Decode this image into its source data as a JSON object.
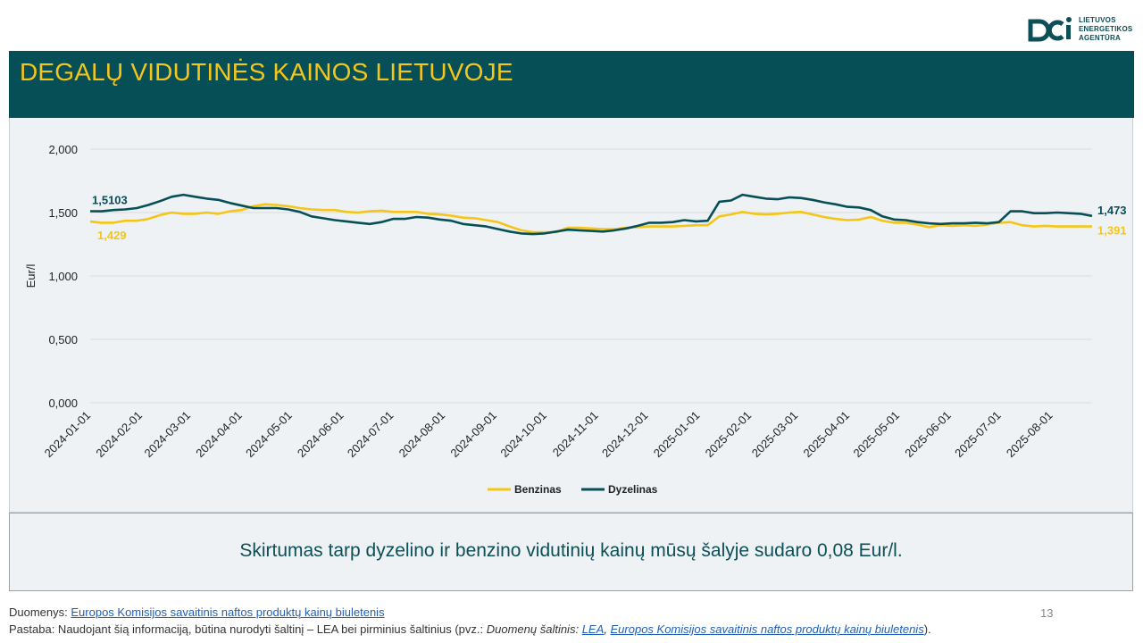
{
  "header": {
    "title": "DEGALŲ VIDUTINĖS KAINOS LIETUVOJE"
  },
  "logo": {
    "line1": "LIETUVOS",
    "line2": "ENERGETIKOS",
    "line3": "AGENTŪRA",
    "icon": "lea-logo-icon"
  },
  "chart_data": {
    "type": "line",
    "title": "",
    "xlabel": "",
    "ylabel": "Eur/l",
    "ylim": [
      0,
      2
    ],
    "yticks": [
      "0,000",
      "0,500",
      "1,000",
      "1,500",
      "2,000"
    ],
    "grid": true,
    "legend_position": "bottom",
    "x_tick_labels": [
      "2024-01-01",
      "2024-02-01",
      "2024-03-01",
      "2024-04-01",
      "2024-05-01",
      "2024-06-01",
      "2024-07-01",
      "2024-08-01",
      "2024-09-01",
      "2024-10-01",
      "2024-11-01",
      "2024-12-01",
      "2025-01-01",
      "2025-02-01",
      "2025-03-01",
      "2025-04-01",
      "2025-05-01",
      "2025-06-01",
      "2025-07-01",
      "2025-08-01"
    ],
    "series": [
      {
        "name": "Benzinas",
        "color": "#f5c518",
        "points": [
          [
            "2024-01-01",
            1.429
          ],
          [
            "2024-01-08",
            1.42
          ],
          [
            "2024-01-15",
            1.42
          ],
          [
            "2024-01-22",
            1.435
          ],
          [
            "2024-01-29",
            1.435
          ],
          [
            "2024-02-05",
            1.45
          ],
          [
            "2024-02-12",
            1.48
          ],
          [
            "2024-02-19",
            1.5
          ],
          [
            "2024-02-26",
            1.49
          ],
          [
            "2024-03-04",
            1.49
          ],
          [
            "2024-03-11",
            1.5
          ],
          [
            "2024-03-18",
            1.49
          ],
          [
            "2024-03-25",
            1.51
          ],
          [
            "2024-04-01",
            1.52
          ],
          [
            "2024-04-08",
            1.55
          ],
          [
            "2024-04-15",
            1.565
          ],
          [
            "2024-04-22",
            1.56
          ],
          [
            "2024-04-29",
            1.55
          ],
          [
            "2024-05-06",
            1.535
          ],
          [
            "2024-05-13",
            1.525
          ],
          [
            "2024-05-20",
            1.52
          ],
          [
            "2024-05-27",
            1.52
          ],
          [
            "2024-06-03",
            1.505
          ],
          [
            "2024-06-10",
            1.5
          ],
          [
            "2024-06-17",
            1.51
          ],
          [
            "2024-06-24",
            1.515
          ],
          [
            "2024-07-01",
            1.505
          ],
          [
            "2024-07-08",
            1.505
          ],
          [
            "2024-07-15",
            1.505
          ],
          [
            "2024-07-22",
            1.49
          ],
          [
            "2024-07-29",
            1.485
          ],
          [
            "2024-08-05",
            1.475
          ],
          [
            "2024-08-12",
            1.46
          ],
          [
            "2024-08-19",
            1.455
          ],
          [
            "2024-08-26",
            1.44
          ],
          [
            "2024-09-02",
            1.425
          ],
          [
            "2024-09-09",
            1.39
          ],
          [
            "2024-09-16",
            1.36
          ],
          [
            "2024-09-23",
            1.345
          ],
          [
            "2024-09-30",
            1.345
          ],
          [
            "2024-10-07",
            1.345
          ],
          [
            "2024-10-14",
            1.38
          ],
          [
            "2024-10-21",
            1.38
          ],
          [
            "2024-10-28",
            1.375
          ],
          [
            "2024-11-04",
            1.37
          ],
          [
            "2024-11-11",
            1.37
          ],
          [
            "2024-11-18",
            1.38
          ],
          [
            "2024-11-25",
            1.385
          ],
          [
            "2024-12-02",
            1.39
          ],
          [
            "2024-12-09",
            1.39
          ],
          [
            "2024-12-16",
            1.39
          ],
          [
            "2024-12-23",
            1.395
          ],
          [
            "2024-12-30",
            1.4
          ],
          [
            "2025-01-06",
            1.4
          ],
          [
            "2025-01-13",
            1.47
          ],
          [
            "2025-01-20",
            1.485
          ],
          [
            "2025-01-27",
            1.505
          ],
          [
            "2025-02-03",
            1.49
          ],
          [
            "2025-02-10",
            1.485
          ],
          [
            "2025-02-17",
            1.49
          ],
          [
            "2025-02-24",
            1.5
          ],
          [
            "2025-03-03",
            1.505
          ],
          [
            "2025-03-10",
            1.485
          ],
          [
            "2025-03-17",
            1.465
          ],
          [
            "2025-03-24",
            1.45
          ],
          [
            "2025-03-31",
            1.44
          ],
          [
            "2025-04-07",
            1.445
          ],
          [
            "2025-04-14",
            1.465
          ],
          [
            "2025-04-21",
            1.435
          ],
          [
            "2025-04-28",
            1.42
          ],
          [
            "2025-05-05",
            1.42
          ],
          [
            "2025-05-12",
            1.405
          ],
          [
            "2025-05-19",
            1.385
          ],
          [
            "2025-05-26",
            1.4
          ],
          [
            "2025-06-02",
            1.395
          ],
          [
            "2025-06-09",
            1.4
          ],
          [
            "2025-06-16",
            1.395
          ],
          [
            "2025-06-23",
            1.405
          ],
          [
            "2025-06-30",
            1.42
          ],
          [
            "2025-07-07",
            1.425
          ],
          [
            "2025-07-14",
            1.4
          ],
          [
            "2025-07-21",
            1.39
          ],
          [
            "2025-07-28",
            1.395
          ],
          [
            "2025-08-04",
            1.39
          ],
          [
            "2025-08-11",
            1.39
          ],
          [
            "2025-08-18",
            1.39
          ],
          [
            "2025-08-25",
            1.391
          ]
        ],
        "start_label": "1,429",
        "end_label": "1,391"
      },
      {
        "name": "Dyzelinas",
        "color": "#074f57",
        "points": [
          [
            "2024-01-01",
            1.5103
          ],
          [
            "2024-01-08",
            1.51
          ],
          [
            "2024-01-15",
            1.52
          ],
          [
            "2024-01-22",
            1.525
          ],
          [
            "2024-01-29",
            1.535
          ],
          [
            "2024-02-05",
            1.56
          ],
          [
            "2024-02-12",
            1.59
          ],
          [
            "2024-02-19",
            1.625
          ],
          [
            "2024-02-26",
            1.64
          ],
          [
            "2024-03-04",
            1.625
          ],
          [
            "2024-03-11",
            1.61
          ],
          [
            "2024-03-18",
            1.6
          ],
          [
            "2024-03-25",
            1.575
          ],
          [
            "2024-04-01",
            1.555
          ],
          [
            "2024-04-08",
            1.535
          ],
          [
            "2024-04-15",
            1.535
          ],
          [
            "2024-04-22",
            1.535
          ],
          [
            "2024-04-29",
            1.525
          ],
          [
            "2024-05-06",
            1.505
          ],
          [
            "2024-05-13",
            1.47
          ],
          [
            "2024-05-20",
            1.455
          ],
          [
            "2024-05-27",
            1.44
          ],
          [
            "2024-06-03",
            1.43
          ],
          [
            "2024-06-10",
            1.42
          ],
          [
            "2024-06-17",
            1.41
          ],
          [
            "2024-06-24",
            1.425
          ],
          [
            "2024-07-01",
            1.45
          ],
          [
            "2024-07-08",
            1.45
          ],
          [
            "2024-07-15",
            1.465
          ],
          [
            "2024-07-22",
            1.46
          ],
          [
            "2024-07-29",
            1.445
          ],
          [
            "2024-08-05",
            1.435
          ],
          [
            "2024-08-12",
            1.41
          ],
          [
            "2024-08-19",
            1.4
          ],
          [
            "2024-08-26",
            1.39
          ],
          [
            "2024-09-02",
            1.37
          ],
          [
            "2024-09-09",
            1.35
          ],
          [
            "2024-09-16",
            1.335
          ],
          [
            "2024-09-23",
            1.33
          ],
          [
            "2024-09-30",
            1.335
          ],
          [
            "2024-10-07",
            1.35
          ],
          [
            "2024-10-14",
            1.365
          ],
          [
            "2024-10-21",
            1.36
          ],
          [
            "2024-10-28",
            1.355
          ],
          [
            "2024-11-04",
            1.35
          ],
          [
            "2024-11-11",
            1.36
          ],
          [
            "2024-11-18",
            1.375
          ],
          [
            "2024-11-25",
            1.395
          ],
          [
            "2024-12-02",
            1.42
          ],
          [
            "2024-12-09",
            1.42
          ],
          [
            "2024-12-16",
            1.425
          ],
          [
            "2024-12-23",
            1.44
          ],
          [
            "2024-12-30",
            1.43
          ],
          [
            "2025-01-06",
            1.435
          ],
          [
            "2025-01-13",
            1.585
          ],
          [
            "2025-01-20",
            1.595
          ],
          [
            "2025-01-27",
            1.64
          ],
          [
            "2025-02-03",
            1.625
          ],
          [
            "2025-02-10",
            1.61
          ],
          [
            "2025-02-17",
            1.605
          ],
          [
            "2025-02-24",
            1.62
          ],
          [
            "2025-03-03",
            1.615
          ],
          [
            "2025-03-10",
            1.6
          ],
          [
            "2025-03-17",
            1.58
          ],
          [
            "2025-03-24",
            1.565
          ],
          [
            "2025-03-31",
            1.545
          ],
          [
            "2025-04-07",
            1.54
          ],
          [
            "2025-04-14",
            1.52
          ],
          [
            "2025-04-21",
            1.47
          ],
          [
            "2025-04-28",
            1.445
          ],
          [
            "2025-05-05",
            1.44
          ],
          [
            "2025-05-12",
            1.425
          ],
          [
            "2025-05-19",
            1.415
          ],
          [
            "2025-05-26",
            1.41
          ],
          [
            "2025-06-02",
            1.415
          ],
          [
            "2025-06-09",
            1.415
          ],
          [
            "2025-06-16",
            1.42
          ],
          [
            "2025-06-23",
            1.415
          ],
          [
            "2025-06-30",
            1.425
          ],
          [
            "2025-07-07",
            1.51
          ],
          [
            "2025-07-14",
            1.51
          ],
          [
            "2025-07-21",
            1.495
          ],
          [
            "2025-07-28",
            1.495
          ],
          [
            "2025-08-04",
            1.5
          ],
          [
            "2025-08-11",
            1.495
          ],
          [
            "2025-08-18",
            1.49
          ],
          [
            "2025-08-25",
            1.473
          ]
        ],
        "start_label": "1,5103",
        "end_label": "1,473"
      }
    ]
  },
  "note": "Skirtumas tarp dyzelino ir benzino vidutinių kainų mūsų šalyje sudaro 0,08 Eur/l.",
  "footer": {
    "source_prefix": "Duomenys: ",
    "source_link": "Europos Komisijos savaitinis naftos produktų kainų biuletenis",
    "remark_prefix": "Pastaba: Naudojant šią informaciją, būtina nurodyti šaltinį – LEA bei pirminius šaltinius (pvz.: ",
    "remark_italic": "Duomenų šaltinis: ",
    "remark_link1": "LEA",
    "remark_sep": ", ",
    "remark_link2": "Europos Komisijos savaitinis naftos produktų kainų biuletenis",
    "remark_suffix": ")."
  },
  "page_number": "13"
}
